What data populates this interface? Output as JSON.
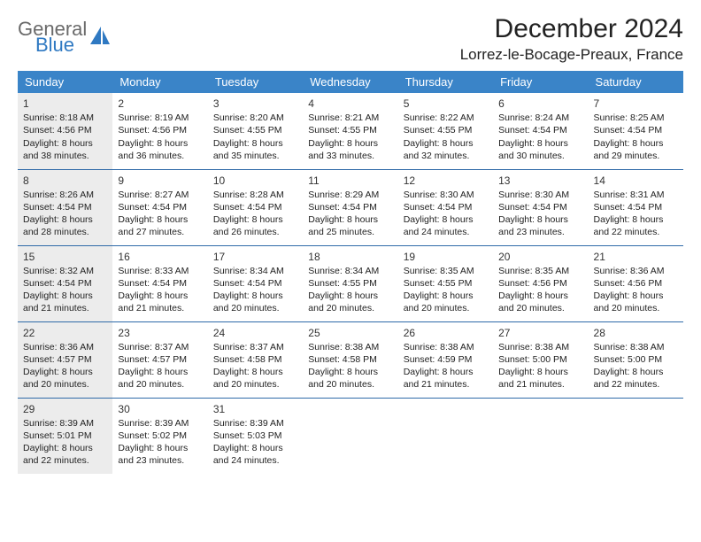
{
  "logo": {
    "text_top": "General",
    "text_bottom": "Blue"
  },
  "title": "December 2024",
  "location": "Lorrez-le-Bocage-Preaux, France",
  "colors": {
    "header_bg": "#3a84c8",
    "header_text": "#ffffff",
    "row_divider": "#2f6aa8",
    "shaded_cell": "#ececec",
    "logo_general": "#6a6a6a",
    "logo_blue": "#2f79c2"
  },
  "day_headers": [
    "Sunday",
    "Monday",
    "Tuesday",
    "Wednesday",
    "Thursday",
    "Friday",
    "Saturday"
  ],
  "weeks": [
    [
      {
        "n": 1,
        "sunrise": "8:18 AM",
        "sunset": "4:56 PM",
        "day_h": 8,
        "day_m": 38,
        "shaded": true
      },
      {
        "n": 2,
        "sunrise": "8:19 AM",
        "sunset": "4:56 PM",
        "day_h": 8,
        "day_m": 36
      },
      {
        "n": 3,
        "sunrise": "8:20 AM",
        "sunset": "4:55 PM",
        "day_h": 8,
        "day_m": 35
      },
      {
        "n": 4,
        "sunrise": "8:21 AM",
        "sunset": "4:55 PM",
        "day_h": 8,
        "day_m": 33
      },
      {
        "n": 5,
        "sunrise": "8:22 AM",
        "sunset": "4:55 PM",
        "day_h": 8,
        "day_m": 32
      },
      {
        "n": 6,
        "sunrise": "8:24 AM",
        "sunset": "4:54 PM",
        "day_h": 8,
        "day_m": 30
      },
      {
        "n": 7,
        "sunrise": "8:25 AM",
        "sunset": "4:54 PM",
        "day_h": 8,
        "day_m": 29
      }
    ],
    [
      {
        "n": 8,
        "sunrise": "8:26 AM",
        "sunset": "4:54 PM",
        "day_h": 8,
        "day_m": 28,
        "shaded": true
      },
      {
        "n": 9,
        "sunrise": "8:27 AM",
        "sunset": "4:54 PM",
        "day_h": 8,
        "day_m": 27
      },
      {
        "n": 10,
        "sunrise": "8:28 AM",
        "sunset": "4:54 PM",
        "day_h": 8,
        "day_m": 26
      },
      {
        "n": 11,
        "sunrise": "8:29 AM",
        "sunset": "4:54 PM",
        "day_h": 8,
        "day_m": 25
      },
      {
        "n": 12,
        "sunrise": "8:30 AM",
        "sunset": "4:54 PM",
        "day_h": 8,
        "day_m": 24
      },
      {
        "n": 13,
        "sunrise": "8:30 AM",
        "sunset": "4:54 PM",
        "day_h": 8,
        "day_m": 23
      },
      {
        "n": 14,
        "sunrise": "8:31 AM",
        "sunset": "4:54 PM",
        "day_h": 8,
        "day_m": 22
      }
    ],
    [
      {
        "n": 15,
        "sunrise": "8:32 AM",
        "sunset": "4:54 PM",
        "day_h": 8,
        "day_m": 21,
        "shaded": true
      },
      {
        "n": 16,
        "sunrise": "8:33 AM",
        "sunset": "4:54 PM",
        "day_h": 8,
        "day_m": 21
      },
      {
        "n": 17,
        "sunrise": "8:34 AM",
        "sunset": "4:54 PM",
        "day_h": 8,
        "day_m": 20
      },
      {
        "n": 18,
        "sunrise": "8:34 AM",
        "sunset": "4:55 PM",
        "day_h": 8,
        "day_m": 20
      },
      {
        "n": 19,
        "sunrise": "8:35 AM",
        "sunset": "4:55 PM",
        "day_h": 8,
        "day_m": 20
      },
      {
        "n": 20,
        "sunrise": "8:35 AM",
        "sunset": "4:56 PM",
        "day_h": 8,
        "day_m": 20
      },
      {
        "n": 21,
        "sunrise": "8:36 AM",
        "sunset": "4:56 PM",
        "day_h": 8,
        "day_m": 20
      }
    ],
    [
      {
        "n": 22,
        "sunrise": "8:36 AM",
        "sunset": "4:57 PM",
        "day_h": 8,
        "day_m": 20,
        "shaded": true
      },
      {
        "n": 23,
        "sunrise": "8:37 AM",
        "sunset": "4:57 PM",
        "day_h": 8,
        "day_m": 20
      },
      {
        "n": 24,
        "sunrise": "8:37 AM",
        "sunset": "4:58 PM",
        "day_h": 8,
        "day_m": 20
      },
      {
        "n": 25,
        "sunrise": "8:38 AM",
        "sunset": "4:58 PM",
        "day_h": 8,
        "day_m": 20
      },
      {
        "n": 26,
        "sunrise": "8:38 AM",
        "sunset": "4:59 PM",
        "day_h": 8,
        "day_m": 21
      },
      {
        "n": 27,
        "sunrise": "8:38 AM",
        "sunset": "5:00 PM",
        "day_h": 8,
        "day_m": 21
      },
      {
        "n": 28,
        "sunrise": "8:38 AM",
        "sunset": "5:00 PM",
        "day_h": 8,
        "day_m": 22
      }
    ],
    [
      {
        "n": 29,
        "sunrise": "8:39 AM",
        "sunset": "5:01 PM",
        "day_h": 8,
        "day_m": 22,
        "shaded": true
      },
      {
        "n": 30,
        "sunrise": "8:39 AM",
        "sunset": "5:02 PM",
        "day_h": 8,
        "day_m": 23
      },
      {
        "n": 31,
        "sunrise": "8:39 AM",
        "sunset": "5:03 PM",
        "day_h": 8,
        "day_m": 24
      },
      null,
      null,
      null,
      null
    ]
  ]
}
